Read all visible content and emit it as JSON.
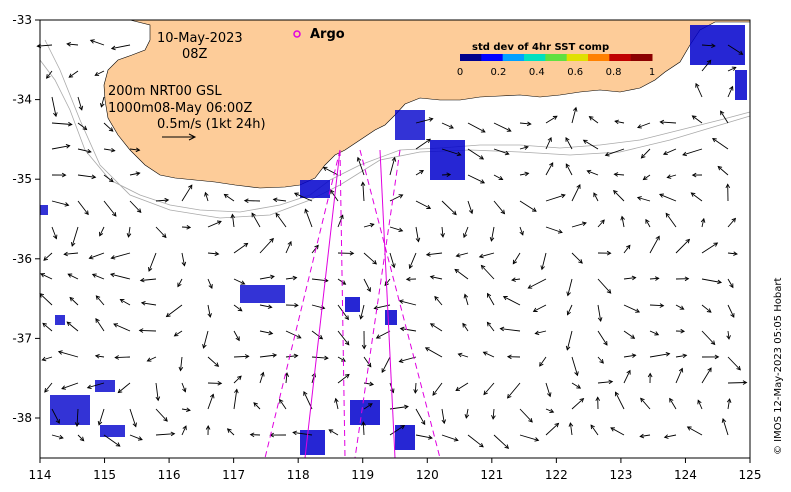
{
  "header": {
    "date": "10-May-2023",
    "hour": "08Z",
    "argo_label": "Argo"
  },
  "legend": {
    "colorbar_title": "std dev of 4hr SST comp",
    "colorbar_ticks": [
      "0",
      "0.2",
      "0.4",
      "0.6",
      "0.8",
      "1"
    ],
    "colorbar_colors": [
      "#00008b",
      "#0000ff",
      "#00a0ff",
      "#00e0c0",
      "#60e040",
      "#e0e000",
      "#ff8000",
      "#c00000",
      "#8b0000"
    ],
    "argo_marker_color": "#e000e0"
  },
  "annotations": {
    "line1": "200m  NRT00 GSL",
    "line2": "1000m08-May 06:00Z",
    "scale_text": "0.5m/s (1kt 24h)"
  },
  "axes": {
    "x_ticks": [
      "114",
      "115",
      "116",
      "117",
      "118",
      "119",
      "120",
      "121",
      "122",
      "123",
      "124",
      "125"
    ],
    "y_ticks": [
      "-33",
      "-34",
      "-35",
      "-36",
      "-37",
      "-38"
    ],
    "x_range": [
      114,
      125
    ],
    "y_range": [
      -38.5,
      -33
    ]
  },
  "credit": "© IMOS 12-May-2023 05:05 Hobart",
  "colors": {
    "land": "#fdcc99",
    "swath": "#e000e0",
    "bathy": "#aaaaaa"
  }
}
